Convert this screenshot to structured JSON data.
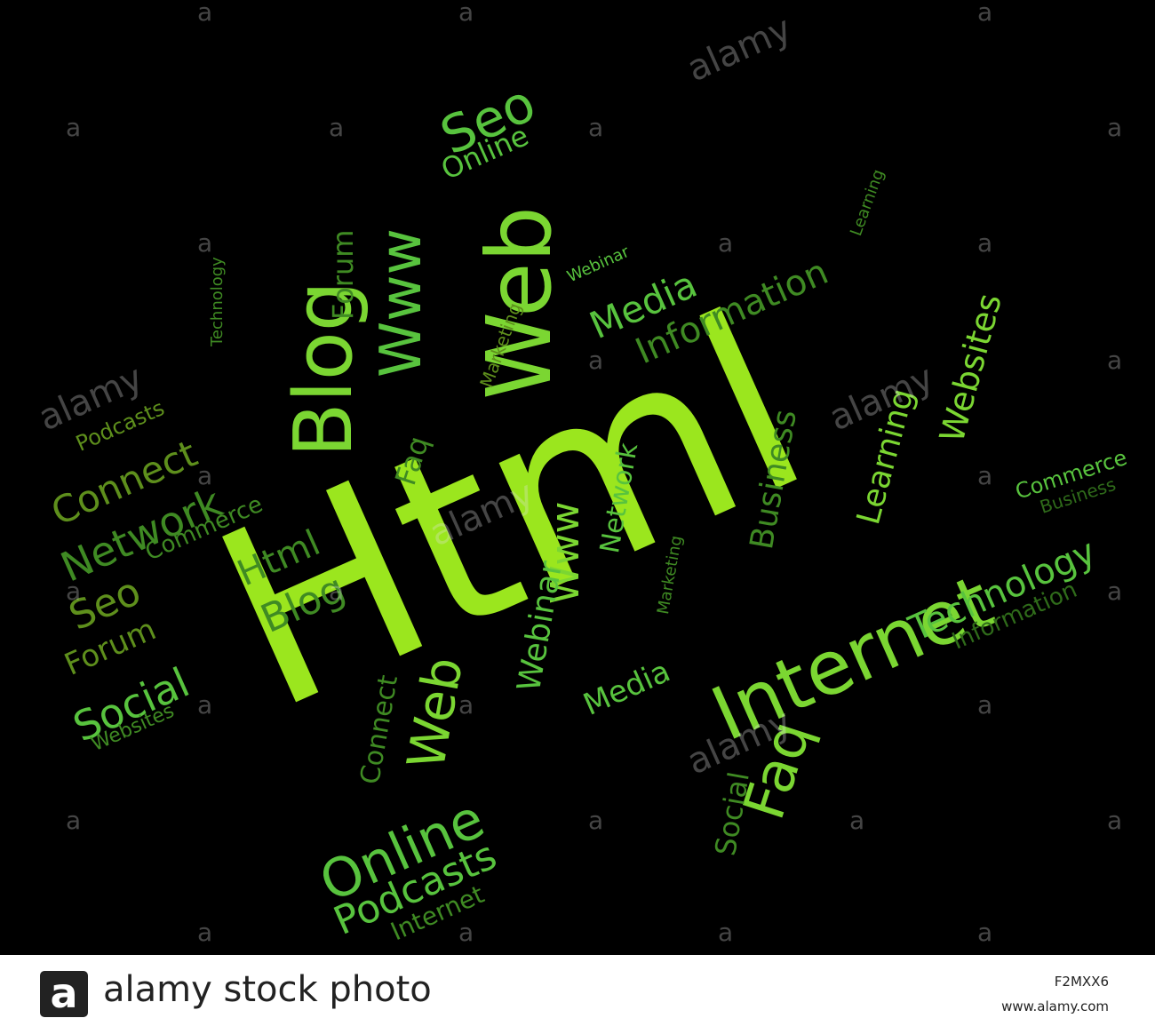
{
  "colors": {
    "bright": "#9be61e",
    "mid": "#7bd632",
    "light": "#58c33e",
    "dark": "#3f8a23",
    "olive": "#5e8f1c",
    "darker": "#2f6b1a"
  },
  "words": [
    {
      "text": "Html",
      "color": "bright"
    },
    {
      "text": "Internet",
      "color": "mid"
    },
    {
      "text": "Web",
      "color": "mid"
    },
    {
      "text": "Blog",
      "color": "mid"
    },
    {
      "text": "Www",
      "color": "light"
    },
    {
      "text": "Seo",
      "color": "light"
    },
    {
      "text": "Online",
      "color": "light"
    },
    {
      "text": "Forum",
      "color": "dark"
    },
    {
      "text": "Technology",
      "color": "dark"
    },
    {
      "text": "Webinar",
      "color": "light"
    },
    {
      "text": "Media",
      "color": "light"
    },
    {
      "text": "Information",
      "color": "dark"
    },
    {
      "text": "Learning",
      "color": "dark"
    },
    {
      "text": "Marketing",
      "color": "olive"
    },
    {
      "text": "Websites",
      "color": "mid"
    },
    {
      "text": "Learning",
      "color": "mid"
    },
    {
      "text": "Podcasts",
      "color": "olive"
    },
    {
      "text": "Connect",
      "color": "olive"
    },
    {
      "text": "Network",
      "color": "dark"
    },
    {
      "text": "Commerce",
      "color": "dark"
    },
    {
      "text": "Seo",
      "color": "olive"
    },
    {
      "text": "Html",
      "color": "dark"
    },
    {
      "text": "Blog",
      "color": "dark"
    },
    {
      "text": "Forum",
      "color": "olive"
    },
    {
      "text": "Social",
      "color": "light"
    },
    {
      "text": "Websites",
      "color": "dark"
    },
    {
      "text": "Faq",
      "color": "dark"
    },
    {
      "text": "Www",
      "color": "mid"
    },
    {
      "text": "Network",
      "color": "light"
    },
    {
      "text": "Webinar",
      "color": "light"
    },
    {
      "text": "Marketing",
      "color": "dark"
    },
    {
      "text": "Business",
      "color": "dark"
    },
    {
      "text": "Commerce",
      "color": "light"
    },
    {
      "text": "Business",
      "color": "darker"
    },
    {
      "text": "Technology",
      "color": "light"
    },
    {
      "text": "Information",
      "color": "darker"
    },
    {
      "text": "Media",
      "color": "light"
    },
    {
      "text": "Faq",
      "color": "mid"
    },
    {
      "text": "Social",
      "color": "dark"
    },
    {
      "text": "Connect",
      "color": "dark"
    },
    {
      "text": "Web",
      "color": "mid"
    },
    {
      "text": "Online",
      "color": "light"
    },
    {
      "text": "Podcasts",
      "color": "light"
    },
    {
      "text": "Internet",
      "color": "dark"
    }
  ],
  "watermark": {
    "logo_letter": "a",
    "word": "alamy"
  },
  "footer": {
    "logo_letter": "a",
    "brand": "alamy stock photo",
    "image_id": "F2MXX6",
    "site": "www.alamy.com"
  }
}
